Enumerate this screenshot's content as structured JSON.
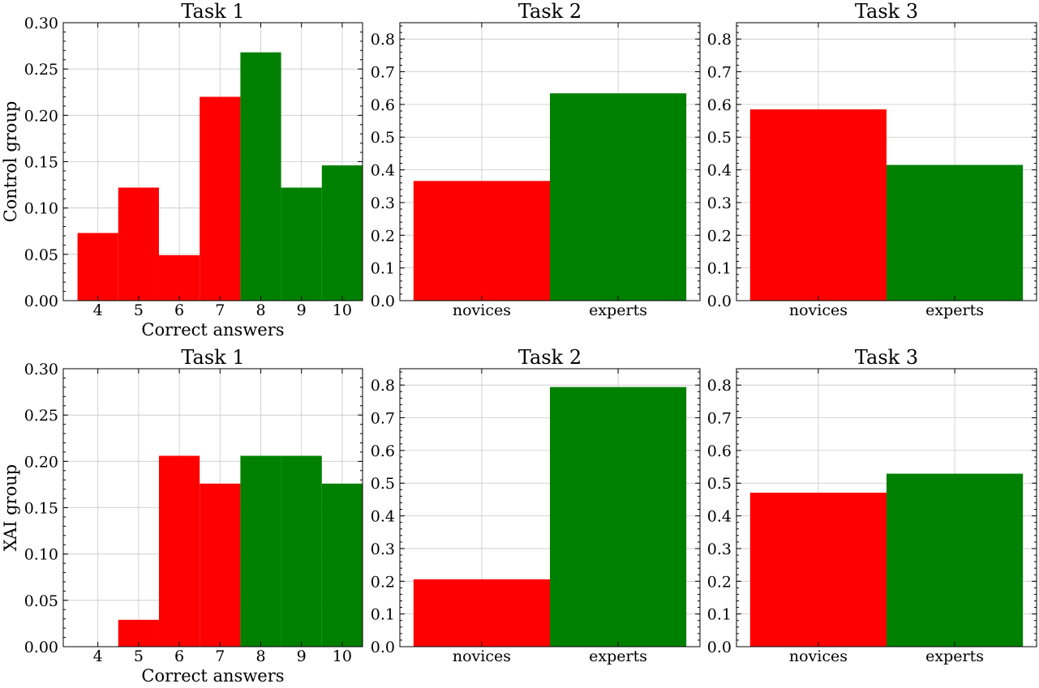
{
  "colors": {
    "below": "#ff0000",
    "above": "#008000"
  },
  "chart_data": [
    {
      "id": "control-task1",
      "type": "bar",
      "title": "Task 1",
      "xlabel": "Correct answers",
      "ylabel": "Control group",
      "categories": [
        "4",
        "5",
        "6",
        "7",
        "8",
        "9",
        "10"
      ],
      "values": [
        0.073,
        0.122,
        0.049,
        0.22,
        0.268,
        0.122,
        0.146
      ],
      "bar_colors": [
        "below",
        "below",
        "below",
        "below",
        "above",
        "above",
        "above"
      ],
      "ylim": [
        0,
        0.3
      ],
      "yticks": [
        "0.00",
        "0.05",
        "0.10",
        "0.15",
        "0.20",
        "0.25",
        "0.30"
      ],
      "grid": true
    },
    {
      "id": "control-task2",
      "type": "bar",
      "title": "Task 2",
      "xlabel": "",
      "ylabel": "",
      "categories": [
        "novices",
        "experts"
      ],
      "values": [
        0.366,
        0.634
      ],
      "bar_colors": [
        "below",
        "above"
      ],
      "ylim": [
        0,
        0.85
      ],
      "yticks": [
        "0.0",
        "0.1",
        "0.2",
        "0.3",
        "0.4",
        "0.5",
        "0.6",
        "0.7",
        "0.8"
      ],
      "grid": true
    },
    {
      "id": "control-task3",
      "type": "bar",
      "title": "Task 3",
      "xlabel": "",
      "ylabel": "",
      "categories": [
        "novices",
        "experts"
      ],
      "values": [
        0.585,
        0.415
      ],
      "bar_colors": [
        "below",
        "above"
      ],
      "ylim": [
        0,
        0.85
      ],
      "yticks": [
        "0.0",
        "0.1",
        "0.2",
        "0.3",
        "0.4",
        "0.5",
        "0.6",
        "0.7",
        "0.8"
      ],
      "grid": true
    },
    {
      "id": "xai-task1",
      "type": "bar",
      "title": "Task 1",
      "xlabel": "Correct answers",
      "ylabel": "XAI group",
      "categories": [
        "4",
        "5",
        "6",
        "7",
        "8",
        "9",
        "10"
      ],
      "values": [
        0.0,
        0.029,
        0.206,
        0.176,
        0.206,
        0.206,
        0.176
      ],
      "bar_colors": [
        "below",
        "below",
        "below",
        "below",
        "above",
        "above",
        "above"
      ],
      "ylim": [
        0,
        0.3
      ],
      "yticks": [
        "0.00",
        "0.05",
        "0.10",
        "0.15",
        "0.20",
        "0.25",
        "0.30"
      ],
      "grid": true
    },
    {
      "id": "xai-task2",
      "type": "bar",
      "title": "Task 2",
      "xlabel": "",
      "ylabel": "",
      "categories": [
        "novices",
        "experts"
      ],
      "values": [
        0.206,
        0.794
      ],
      "bar_colors": [
        "below",
        "above"
      ],
      "ylim": [
        0,
        0.85
      ],
      "yticks": [
        "0.0",
        "0.1",
        "0.2",
        "0.3",
        "0.4",
        "0.5",
        "0.6",
        "0.7",
        "0.8"
      ],
      "grid": true
    },
    {
      "id": "xai-task3",
      "type": "bar",
      "title": "Task 3",
      "xlabel": "",
      "ylabel": "",
      "categories": [
        "novices",
        "experts"
      ],
      "values": [
        0.471,
        0.529
      ],
      "bar_colors": [
        "below",
        "above"
      ],
      "ylim": [
        0,
        0.85
      ],
      "yticks": [
        "0.0",
        "0.1",
        "0.2",
        "0.3",
        "0.4",
        "0.5",
        "0.6",
        "0.7",
        "0.8"
      ],
      "grid": true
    }
  ]
}
